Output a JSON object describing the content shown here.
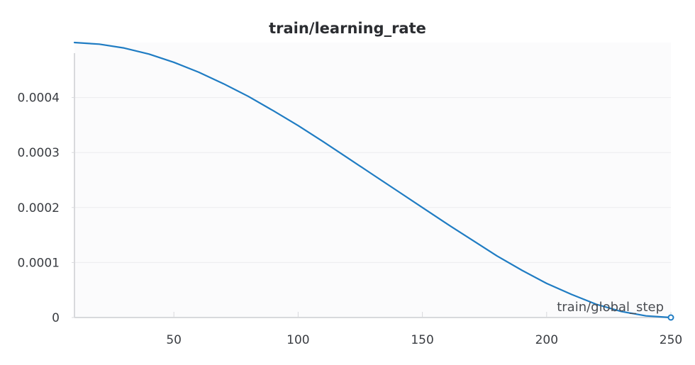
{
  "chart_data": {
    "type": "line",
    "title": "train/learning_rate",
    "xlabel": "train/global_step",
    "ylabel": "",
    "xlim": [
      10,
      250
    ],
    "ylim": [
      0,
      0.0005
    ],
    "x_ticks": [
      50,
      100,
      150,
      200,
      250
    ],
    "x_tick_labels": [
      "50",
      "100",
      "150",
      "200",
      "250"
    ],
    "y_ticks": [
      0,
      0.0001,
      0.0002,
      0.0003,
      0.0004
    ],
    "y_tick_labels": [
      "0",
      "0.0001",
      "0.0002",
      "0.0003",
      "0.0004"
    ],
    "grid": true,
    "series": [
      {
        "color": "#1f7cc3",
        "x": [
          10,
          20,
          30,
          40,
          50,
          60,
          70,
          80,
          90,
          100,
          110,
          120,
          130,
          140,
          150,
          160,
          170,
          180,
          190,
          200,
          210,
          220,
          230,
          240,
          250
        ],
        "y": [
          0.0005,
          0.000497,
          0.00049,
          0.000479,
          0.000464,
          0.000446,
          0.000425,
          0.000402,
          0.000376,
          0.000349,
          0.00032,
          0.00029,
          0.00026,
          0.00023,
          0.0002,
          0.00017,
          0.000141,
          0.000112,
          8.6e-05,
          6.2e-05,
          4.2e-05,
          2.4e-05,
          1.1e-05,
          3e-06,
          0.0
        ]
      }
    ]
  }
}
